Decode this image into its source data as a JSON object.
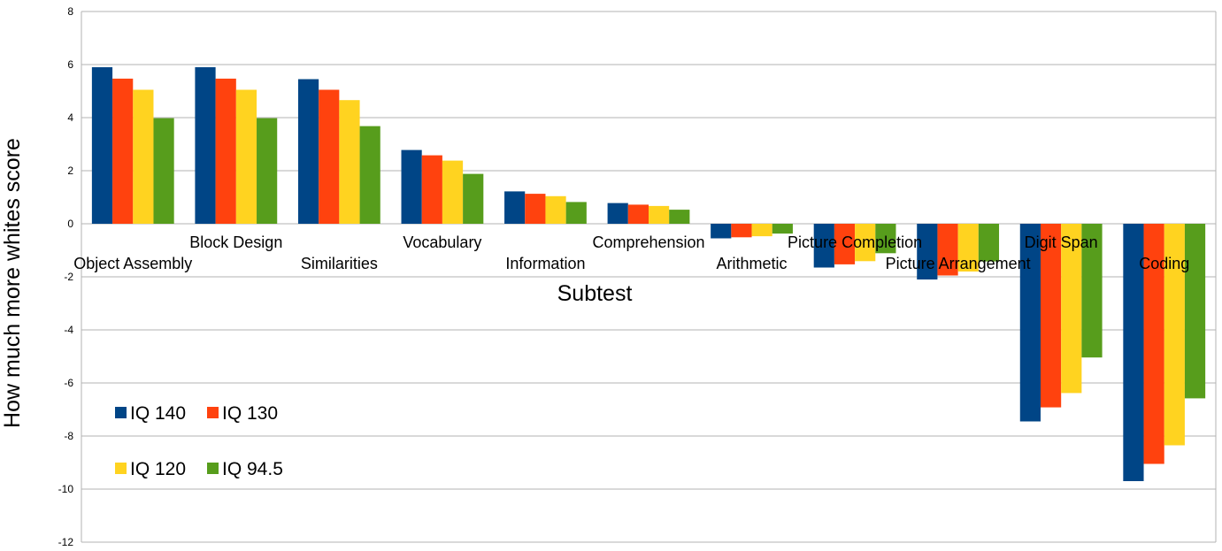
{
  "chart_data": {
    "type": "bar",
    "title": "",
    "xlabel": "Subtest",
    "ylabel": "How much more whites score",
    "ylim": [
      -12,
      8
    ],
    "ytick_step": 2,
    "yticks": [
      "8",
      "6",
      "4",
      "2",
      "0",
      "-2",
      "-4",
      "-6",
      "-8",
      "-10",
      "-12"
    ],
    "grid": true,
    "legend_position": "bottom-left",
    "categories": [
      "Object Assembly",
      "Block Design",
      "Similarities",
      "Vocabulary",
      "Information",
      "Comprehension",
      "Arithmetic",
      "Picture Completion",
      "Picture Arrangement",
      "Digit Span",
      "Coding"
    ],
    "series": [
      {
        "name": "IQ 140",
        "color": "#004586",
        "values": [
          5.9,
          5.9,
          5.45,
          2.78,
          1.22,
          0.78,
          -0.55,
          -1.65,
          -2.1,
          -7.45,
          -9.7
        ]
      },
      {
        "name": "IQ 130",
        "color": "#ff420e",
        "values": [
          5.47,
          5.47,
          5.05,
          2.58,
          1.13,
          0.72,
          -0.51,
          -1.53,
          -1.95,
          -6.92,
          -9.05
        ]
      },
      {
        "name": "IQ 120",
        "color": "#ffd320",
        "values": [
          5.05,
          5.05,
          4.66,
          2.38,
          1.04,
          0.67,
          -0.47,
          -1.41,
          -1.8,
          -6.38,
          -8.35
        ]
      },
      {
        "name": "IQ 94.5",
        "color": "#579d1c",
        "values": [
          3.98,
          3.98,
          3.68,
          1.88,
          0.82,
          0.53,
          -0.37,
          -1.11,
          -1.42,
          -5.04,
          -6.58
        ]
      }
    ]
  }
}
